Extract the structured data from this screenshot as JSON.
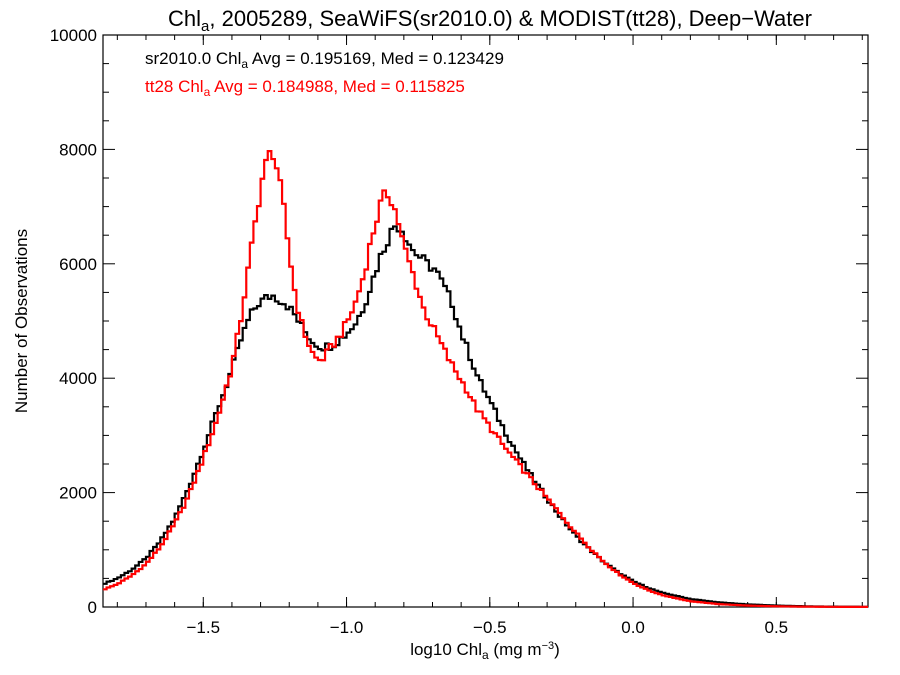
{
  "chart_data": {
    "type": "line",
    "title": {
      "pre": "Chl",
      "sub": "a",
      "post": ", 2005289, SeaWiFS(sr2010.0) & MODIST(tt28), Deep−Water"
    },
    "xlabel": {
      "pre": "log10 Chl",
      "sub": "a",
      "post": " (mg m",
      "sup": "−3",
      "end": ")"
    },
    "ylabel": "Number of Observations",
    "xlim": [
      -1.85,
      0.82
    ],
    "ylim": [
      0,
      10000
    ],
    "x_ticks": [
      {
        "v": -1.5,
        "label": "−1.5"
      },
      {
        "v": -1.0,
        "label": "−1.0"
      },
      {
        "v": -0.5,
        "label": "−0.5"
      },
      {
        "v": 0.0,
        "label": "0.0"
      },
      {
        "v": 0.5,
        "label": "0.5"
      }
    ],
    "y_ticks": [
      {
        "v": 0,
        "label": "0"
      },
      {
        "v": 2000,
        "label": "2000"
      },
      {
        "v": 4000,
        "label": "4000"
      },
      {
        "v": 6000,
        "label": "6000"
      },
      {
        "v": 8000,
        "label": "8000"
      },
      {
        "v": 10000,
        "label": "10000"
      }
    ],
    "annotations": [
      {
        "color": "#000000",
        "pre": "sr2010.0 Chl",
        "sub": "a",
        "post": " Avg = 0.195169, Med = 0.123429"
      },
      {
        "color": "#ff0000",
        "pre": "tt28 Chl",
        "sub": "a",
        "post": " Avg = 0.184988, Med = 0.115825"
      }
    ],
    "grid": false,
    "series": [
      {
        "color": "#000000",
        "x": [
          -1.85,
          -1.8,
          -1.75,
          -1.7,
          -1.65,
          -1.6,
          -1.55,
          -1.5,
          -1.45,
          -1.4,
          -1.37,
          -1.34,
          -1.31,
          -1.28,
          -1.26,
          -1.24,
          -1.21,
          -1.18,
          -1.15,
          -1.12,
          -1.09,
          -1.06,
          -1.03,
          -1.0,
          -0.97,
          -0.94,
          -0.91,
          -0.88,
          -0.85,
          -0.83,
          -0.81,
          -0.79,
          -0.77,
          -0.75,
          -0.72,
          -0.69,
          -0.66,
          -0.63,
          -0.6,
          -0.57,
          -0.54,
          -0.5,
          -0.45,
          -0.4,
          -0.35,
          -0.3,
          -0.25,
          -0.2,
          -0.15,
          -0.1,
          -0.05,
          0.0,
          0.05,
          0.1,
          0.2,
          0.3,
          0.4,
          0.5,
          0.6,
          0.7,
          0.82
        ],
        "y": [
          400,
          500,
          650,
          850,
          1150,
          1550,
          2100,
          2750,
          3450,
          4150,
          4650,
          5050,
          5300,
          5400,
          5450,
          5400,
          5300,
          5100,
          4850,
          4650,
          4550,
          4560,
          4650,
          4780,
          4950,
          5250,
          5700,
          6150,
          6500,
          6680,
          6650,
          6450,
          6250,
          6150,
          6000,
          5900,
          5600,
          5300,
          4800,
          4400,
          4000,
          3600,
          3100,
          2650,
          2250,
          1900,
          1550,
          1250,
          1000,
          780,
          600,
          450,
          340,
          250,
          140,
          80,
          45,
          25,
          12,
          6,
          3
        ]
      },
      {
        "color": "#ff0000",
        "x": [
          -1.85,
          -1.8,
          -1.75,
          -1.7,
          -1.65,
          -1.6,
          -1.55,
          -1.5,
          -1.45,
          -1.4,
          -1.37,
          -1.34,
          -1.31,
          -1.29,
          -1.27,
          -1.255,
          -1.24,
          -1.22,
          -1.2,
          -1.18,
          -1.16,
          -1.14,
          -1.12,
          -1.1,
          -1.08,
          -1.06,
          -1.03,
          -1.0,
          -0.97,
          -0.94,
          -0.91,
          -0.88,
          -0.86,
          -0.84,
          -0.82,
          -0.8,
          -0.78,
          -0.76,
          -0.73,
          -0.7,
          -0.67,
          -0.64,
          -0.61,
          -0.58,
          -0.55,
          -0.5,
          -0.45,
          -0.4,
          -0.35,
          -0.3,
          -0.25,
          -0.2,
          -0.15,
          -0.1,
          -0.05,
          0.0,
          0.05,
          0.1,
          0.2,
          0.3,
          0.4,
          0.5,
          0.6,
          0.7,
          0.82
        ],
        "y": [
          300,
          400,
          550,
          750,
          1050,
          1450,
          1950,
          2600,
          3300,
          4200,
          5000,
          6000,
          7000,
          7600,
          7900,
          7950,
          7600,
          7000,
          6200,
          5500,
          5000,
          4700,
          4450,
          4300,
          4350,
          4500,
          4700,
          4950,
          5300,
          5800,
          6500,
          7050,
          7250,
          7100,
          6750,
          6300,
          6000,
          5700,
          5200,
          4900,
          4600,
          4300,
          4050,
          3800,
          3500,
          3150,
          2800,
          2500,
          2200,
          1900,
          1600,
          1300,
          1030,
          780,
          580,
          420,
          300,
          210,
          100,
          50,
          25,
          12,
          6,
          3,
          2
        ]
      }
    ]
  }
}
